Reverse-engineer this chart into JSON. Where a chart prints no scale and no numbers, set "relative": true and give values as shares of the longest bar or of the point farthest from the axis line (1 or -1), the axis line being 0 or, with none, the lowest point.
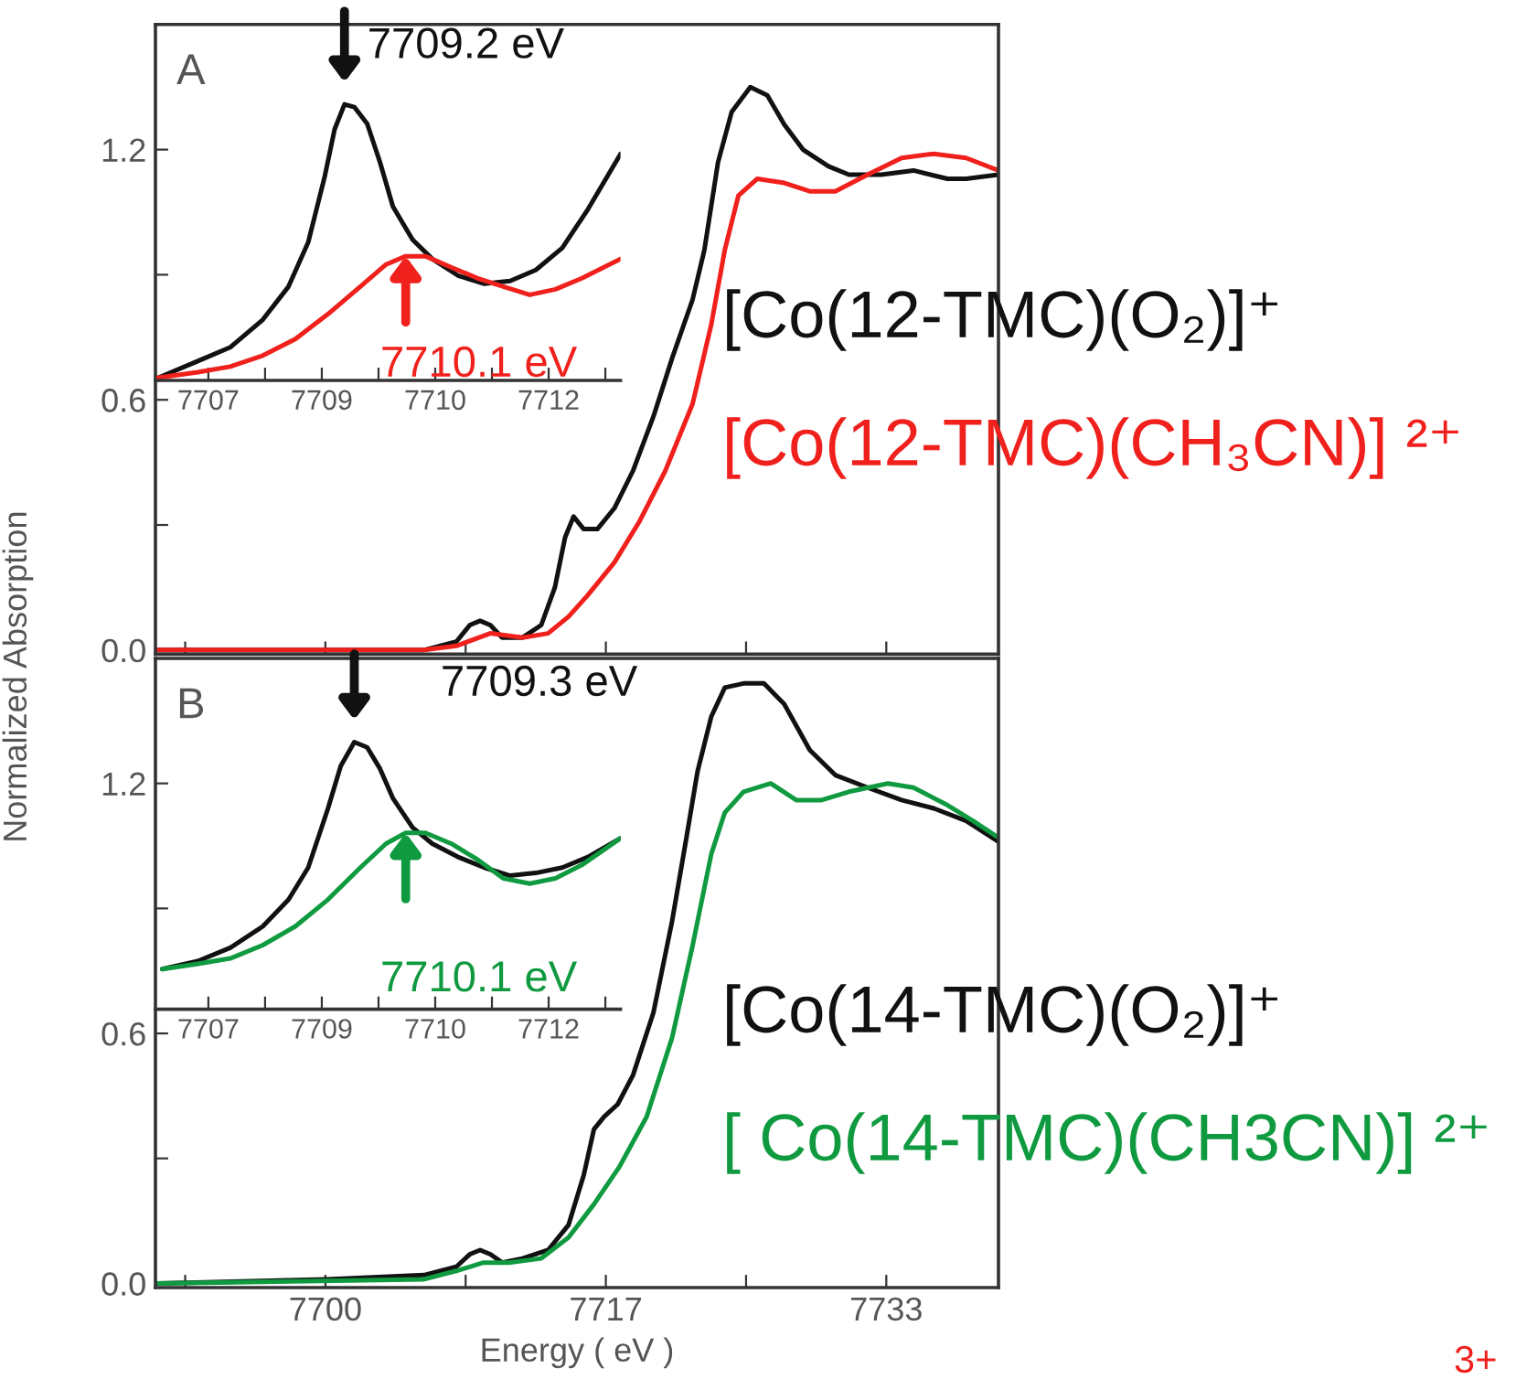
{
  "chart_data": [
    {
      "type": "line",
      "ylabel": "Normalized Absorption",
      "annotations": [
        "A",
        "3+"
      ],
      "tick_labels": "y",
      "xlim": [
        7690,
        7739.6
      ],
      "ylim": [
        -0.01,
        1.5
      ],
      "xticks": [
        {
          "value": 7691.75,
          "label": null
        },
        {
          "value": 7700,
          "label": null
        },
        {
          "value": 7708.25,
          "label": null
        },
        {
          "value": 7716.5,
          "label": null
        },
        {
          "value": 7724.75,
          "label": null
        },
        {
          "value": 7733,
          "label": null
        }
      ],
      "yticks": [
        {
          "value": 0,
          "label": "0.0"
        },
        {
          "value": 0.3,
          "label": null
        },
        {
          "value": 0.6,
          "label": "0.6"
        },
        {
          "value": 0.9,
          "label": null
        },
        {
          "value": 1.2,
          "label": "1.2"
        }
      ],
      "series": [
        {
          "name": "[Co(12-TMC)(O₂)]⁺",
          "color": "#111111",
          "x": [
            7690.1,
            7700.1,
            7705.8,
            7707.7,
            7708.5,
            7709.1,
            7709.7,
            7710.4,
            7711.6,
            7712.7,
            7713.5,
            7714.1,
            7714.6,
            7715.2,
            7716.0,
            7717.0,
            7718.1,
            7719.3,
            7720.4,
            7721.6,
            7722.3,
            7723.1,
            7723.9,
            7725.0,
            7726.0,
            7727.0,
            7728.1,
            7729.6,
            7730.8,
            7732.7,
            7734.6,
            7736.6,
            7737.7,
            7739.6
          ],
          "values": [
            0.0,
            0.0,
            0.0,
            0.02,
            0.06,
            0.07,
            0.06,
            0.03,
            0.03,
            0.06,
            0.15,
            0.27,
            0.32,
            0.29,
            0.29,
            0.34,
            0.43,
            0.56,
            0.7,
            0.84,
            0.96,
            1.17,
            1.29,
            1.35,
            1.33,
            1.26,
            1.2,
            1.16,
            1.14,
            1.14,
            1.15,
            1.13,
            1.13,
            1.14
          ]
        },
        {
          "name": "[Co(12-TMC)(CH₃CN)] ²⁺",
          "color": "#f0201c",
          "x": [
            7690.1,
            7705.8,
            7707.7,
            7709.7,
            7711.6,
            7713.1,
            7714.3,
            7715.4,
            7717.0,
            7718.5,
            7720.0,
            7721.6,
            7722.7,
            7723.5,
            7724.3,
            7725.4,
            7727.0,
            7728.5,
            7730.0,
            7731.9,
            7733.9,
            7735.8,
            7737.7,
            7739.6
          ],
          "values": [
            0.0,
            0.0,
            0.01,
            0.04,
            0.03,
            0.04,
            0.08,
            0.13,
            0.21,
            0.31,
            0.43,
            0.59,
            0.78,
            0.96,
            1.09,
            1.13,
            1.12,
            1.1,
            1.1,
            1.14,
            1.18,
            1.19,
            1.18,
            1.15
          ]
        }
      ]
    },
    {
      "type": "line",
      "relative": true,
      "annotations": [
        "7709.2 eV",
        "7710.1 eV"
      ],
      "xlim": [
        7706.3,
        7712.45
      ],
      "xticks": [
        7707,
        {
          "value": 7707.75,
          "label": null
        },
        {
          "value": 7708.5,
          "label": "7709"
        },
        {
          "value": 7709.25,
          "label": null
        },
        7710,
        {
          "value": 7710.75,
          "label": null
        },
        {
          "value": 7711.5,
          "label": "7712"
        },
        {
          "value": 7712.25,
          "label": null
        }
      ],
      "series": [
        {
          "color": "#111111",
          "x": [
            7706.34,
            7706.86,
            7707.29,
            7707.72,
            7708.06,
            7708.32,
            7708.54,
            7708.67,
            7708.8,
            7708.93,
            7709.1,
            7709.27,
            7709.44,
            7709.7,
            7709.96,
            7710.3,
            7710.65,
            7710.99,
            7711.33,
            7711.68,
            7712.02,
            7712.45
          ],
          "values": [
            0.01,
            0.07,
            0.12,
            0.22,
            0.34,
            0.5,
            0.74,
            0.91,
            1.0,
            0.99,
            0.93,
            0.79,
            0.63,
            0.51,
            0.44,
            0.38,
            0.35,
            0.36,
            0.4,
            0.48,
            0.62,
            0.82
          ]
        },
        {
          "color": "#f0201c",
          "x": [
            7706.34,
            7706.86,
            7707.29,
            7707.72,
            7708.15,
            7708.58,
            7709.01,
            7709.35,
            7709.61,
            7709.87,
            7710.21,
            7710.56,
            7710.9,
            7711.25,
            7711.59,
            7711.94,
            7712.45
          ],
          "values": [
            0.01,
            0.03,
            0.05,
            0.09,
            0.15,
            0.24,
            0.34,
            0.42,
            0.45,
            0.45,
            0.41,
            0.37,
            0.34,
            0.31,
            0.33,
            0.37,
            0.44
          ]
        }
      ]
    },
    {
      "type": "line",
      "xlabel": "Energy ( eV )",
      "annotations": [
        "B"
      ],
      "xlim": [
        7690,
        7739.6
      ],
      "ylim": [
        -0.01,
        1.5
      ],
      "xticks": [
        {
          "value": 7691.75,
          "label": null
        },
        7700,
        {
          "value": 7708.25,
          "label": null
        },
        {
          "value": 7716.5,
          "label": "7717"
        },
        {
          "value": 7724.75,
          "label": null
        },
        7733
      ],
      "yticks": [
        {
          "value": 0,
          "label": "0.0"
        },
        {
          "value": 0.3,
          "label": null
        },
        {
          "value": 0.6,
          "label": "0.6"
        },
        {
          "value": 0.9,
          "label": null
        },
        {
          "value": 1.2,
          "label": "1.2"
        }
      ],
      "series": [
        {
          "name": "[Co(14-TMC)(O₂)]⁺",
          "color": "#111111",
          "x": [
            7690.1,
            7700.1,
            7705.8,
            7707.7,
            7708.5,
            7709.1,
            7709.7,
            7710.4,
            7711.6,
            7713.1,
            7714.3,
            7715.2,
            7715.8,
            7716.4,
            7717.2,
            7718.1,
            7719.3,
            7720.4,
            7721.2,
            7721.9,
            7722.7,
            7723.5,
            7724.6,
            7725.8,
            7727.0,
            7728.5,
            7730.0,
            7731.9,
            7733.9,
            7735.8,
            7737.7,
            7739.6
          ],
          "values": [
            0.0,
            0.01,
            0.02,
            0.04,
            0.07,
            0.08,
            0.07,
            0.05,
            0.06,
            0.08,
            0.14,
            0.26,
            0.37,
            0.4,
            0.43,
            0.5,
            0.65,
            0.87,
            1.06,
            1.23,
            1.36,
            1.43,
            1.44,
            1.44,
            1.39,
            1.28,
            1.22,
            1.19,
            1.16,
            1.14,
            1.11,
            1.06
          ]
        },
        {
          "name": "[ Co(14-TMC)(CH3CN)] ²⁺",
          "color": "#109a40",
          "x": [
            7690.1,
            7705.8,
            7707.7,
            7709.3,
            7710.8,
            7712.7,
            7714.3,
            7715.8,
            7717.3,
            7718.9,
            7720.4,
            7721.6,
            7722.7,
            7723.5,
            7724.6,
            7726.2,
            7727.7,
            7729.2,
            7730.8,
            7733.1,
            7734.6,
            7736.5,
            7738.1,
            7739.6
          ],
          "values": [
            0.0,
            0.01,
            0.03,
            0.05,
            0.05,
            0.06,
            0.11,
            0.19,
            0.28,
            0.4,
            0.59,
            0.81,
            1.03,
            1.13,
            1.18,
            1.2,
            1.16,
            1.16,
            1.18,
            1.2,
            1.19,
            1.15,
            1.11,
            1.07
          ]
        }
      ]
    },
    {
      "type": "line",
      "relative": true,
      "annotations": [
        "7709.3 eV",
        "7710.1 eV"
      ],
      "xlim": [
        7706.3,
        7712.45
      ],
      "xticks": [
        7707,
        {
          "value": 7707.75,
          "label": null
        },
        {
          "value": 7708.5,
          "label": "7709"
        },
        {
          "value": 7709.25,
          "label": null
        },
        7710,
        {
          "value": 7710.75,
          "label": null
        },
        {
          "value": 7711.5,
          "label": "7712"
        },
        {
          "value": 7712.25,
          "label": null
        }
      ],
      "series": [
        {
          "color": "#111111",
          "x": [
            7706.39,
            7706.86,
            7707.29,
            7707.72,
            7708.06,
            7708.32,
            7708.58,
            7708.75,
            7708.93,
            7709.1,
            7709.27,
            7709.44,
            7709.7,
            7709.96,
            7710.3,
            7710.65,
            7710.99,
            7711.33,
            7711.68,
            7712.02,
            7712.45
          ],
          "values": [
            0.15,
            0.18,
            0.23,
            0.31,
            0.41,
            0.53,
            0.75,
            0.91,
            1.0,
            0.98,
            0.9,
            0.79,
            0.68,
            0.62,
            0.57,
            0.53,
            0.5,
            0.51,
            0.53,
            0.57,
            0.64
          ]
        },
        {
          "color": "#109a40",
          "x": [
            7706.39,
            7706.86,
            7707.29,
            7707.72,
            7708.15,
            7708.58,
            7709.01,
            7709.35,
            7709.61,
            7709.87,
            7710.21,
            7710.56,
            7710.9,
            7711.25,
            7711.59,
            7711.94,
            7712.45
          ],
          "values": [
            0.15,
            0.17,
            0.19,
            0.24,
            0.31,
            0.41,
            0.53,
            0.62,
            0.66,
            0.66,
            0.62,
            0.56,
            0.49,
            0.47,
            0.49,
            0.54,
            0.64
          ]
        }
      ]
    }
  ]
}
